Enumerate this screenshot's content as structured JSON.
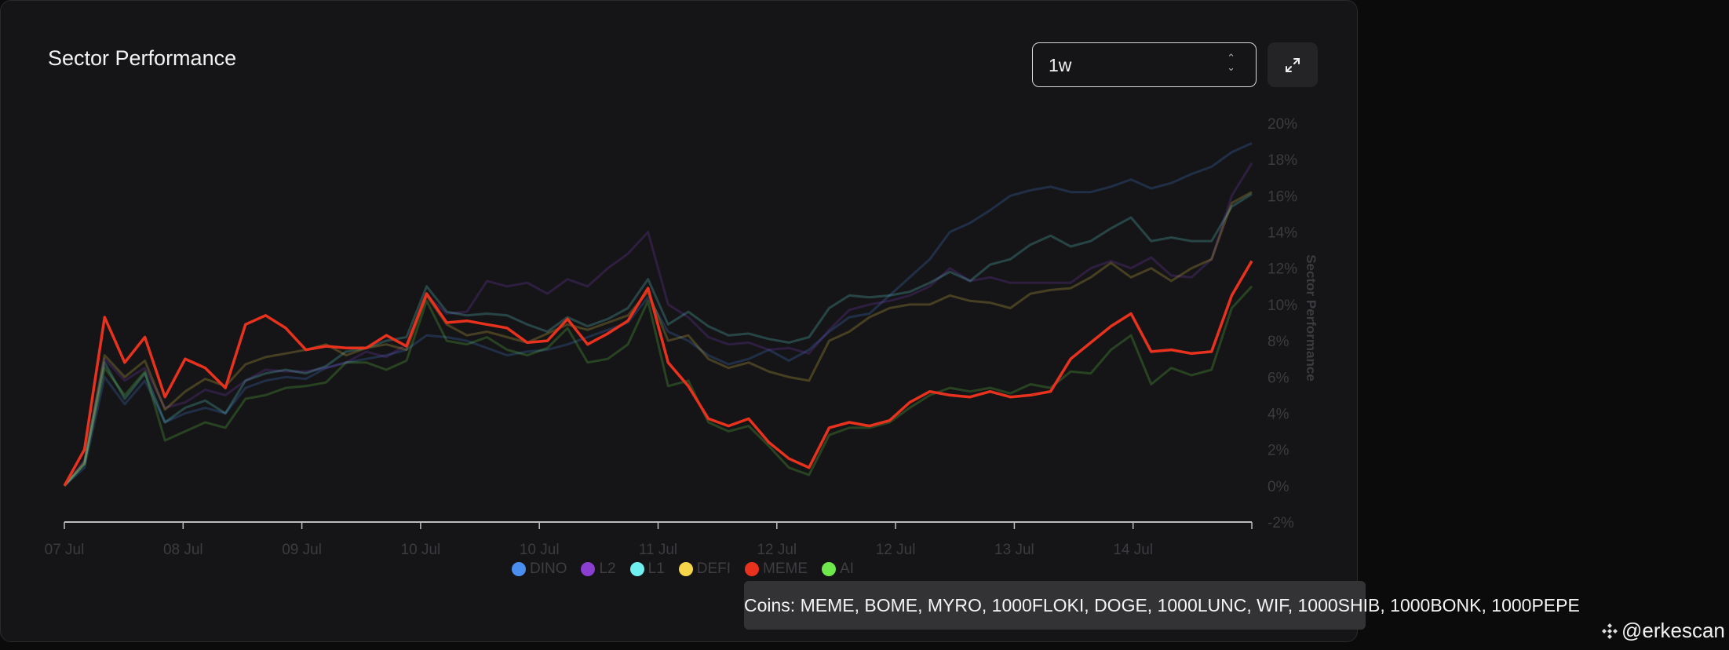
{
  "header": {
    "title": "Sector Performance",
    "timeframe": "1w",
    "expand_icon": "expand-arrows-icon",
    "select_icon": "chevron-up-down-icon"
  },
  "tooltip": {
    "text": "Coins: MEME, BOME, MYRO, 1000FLOKI, DOGE, 1000LUNC, WIF, 1000SHIB, 1000BONK, 1000PEPE"
  },
  "watermark": {
    "text": "@erkescan",
    "icon": "binance-logo-icon"
  },
  "chart_data": {
    "type": "line",
    "title": "",
    "xlabel": "",
    "ylabel": "Sector Performance",
    "x_tick_labels": [
      "07 Jul",
      "08 Jul",
      "09 Jul",
      "10 Jul",
      "10 Jul",
      "11 Jul",
      "12 Jul",
      "12 Jul",
      "13 Jul",
      "14 Jul"
    ],
    "y_tick_labels": [
      "-2%",
      "0%",
      "2%",
      "4%",
      "6%",
      "8%",
      "10%",
      "12%",
      "14%",
      "16%",
      "18%",
      "20%"
    ],
    "ylim": [
      -2,
      20
    ],
    "y_unit": "%",
    "grid": false,
    "legend": "bottom",
    "highlighted_series": "MEME",
    "series": [
      {
        "name": "DINO",
        "color": "#4a8ef0",
        "values": [
          0,
          1.0,
          6.0,
          4.5,
          5.8,
          3.5,
          4.0,
          4.3,
          4.0,
          5.4,
          5.8,
          6.0,
          5.9,
          6.5,
          6.8,
          7.0,
          7.2,
          7.5,
          8.3,
          8.2,
          8.0,
          7.6,
          7.2,
          7.4,
          7.5,
          7.8,
          8.2,
          8.6,
          9.0,
          10.4,
          8.5,
          8.0,
          7.2,
          6.7,
          7.0,
          7.5,
          6.9,
          7.5,
          8.5,
          9.3,
          9.5,
          10.5,
          11.5,
          12.5,
          14.0,
          14.5,
          15.2,
          16.0,
          16.3,
          16.5,
          16.2,
          16.2,
          16.5,
          16.9,
          16.4,
          16.7,
          17.2,
          17.6,
          18.4,
          18.9
        ]
      },
      {
        "name": "L2",
        "color": "#8a3fd1",
        "values": [
          0,
          1.4,
          7.0,
          5.8,
          6.5,
          4.3,
          4.6,
          5.3,
          5.0,
          5.8,
          6.4,
          6.3,
          6.3,
          6.5,
          6.8,
          7.4,
          7.1,
          7.8,
          10.5,
          9.5,
          9.6,
          11.3,
          11.0,
          11.2,
          10.6,
          11.4,
          11.0,
          12.0,
          12.8,
          14.0,
          10.0,
          9.3,
          8.2,
          7.8,
          7.9,
          7.5,
          7.6,
          7.3,
          8.6,
          9.7,
          10.0,
          10.2,
          10.5,
          11.0,
          12.0,
          11.3,
          11.5,
          11.2,
          11.2,
          11.2,
          11.2,
          12.0,
          12.4,
          12.0,
          12.6,
          11.6,
          11.5,
          12.5,
          16.0,
          17.8
        ]
      },
      {
        "name": "L1",
        "color": "#6ff0f0",
        "values": [
          0,
          1.2,
          6.8,
          4.8,
          6.2,
          3.5,
          4.3,
          4.7,
          4.0,
          5.8,
          6.2,
          6.4,
          6.2,
          6.6,
          7.4,
          7.6,
          8.0,
          8.2,
          11.0,
          9.6,
          9.4,
          9.5,
          9.4,
          8.9,
          8.5,
          9.3,
          8.8,
          9.2,
          9.8,
          11.4,
          8.9,
          9.6,
          8.8,
          8.3,
          8.4,
          8.1,
          7.9,
          8.2,
          9.8,
          10.5,
          10.4,
          10.5,
          10.7,
          11.2,
          11.8,
          11.3,
          12.2,
          12.5,
          13.3,
          13.8,
          13.2,
          13.5,
          14.2,
          14.8,
          13.5,
          13.7,
          13.5,
          13.5,
          15.4,
          16.1
        ]
      },
      {
        "name": "DEFI",
        "color": "#f5d54a",
        "values": [
          0,
          1.3,
          7.2,
          6.0,
          6.9,
          4.2,
          5.2,
          5.9,
          5.5,
          6.7,
          7.1,
          7.3,
          7.5,
          7.8,
          7.2,
          7.6,
          7.8,
          7.5,
          10.5,
          8.9,
          8.3,
          8.5,
          8.2,
          7.9,
          8.4,
          8.9,
          8.6,
          9.0,
          9.4,
          10.7,
          8.0,
          8.3,
          7.0,
          6.5,
          6.8,
          6.3,
          6.0,
          5.8,
          8.0,
          8.5,
          9.3,
          9.8,
          10.0,
          10.0,
          10.5,
          10.2,
          10.1,
          9.8,
          10.6,
          10.8,
          10.9,
          11.5,
          12.3,
          11.5,
          12.0,
          11.3,
          12.0,
          12.5,
          15.6,
          16.2
        ]
      },
      {
        "name": "MEME",
        "color": "#e8321e",
        "values": [
          0,
          2.0,
          9.3,
          6.8,
          8.2,
          4.9,
          7.0,
          6.5,
          5.4,
          8.9,
          9.4,
          8.7,
          7.5,
          7.7,
          7.6,
          7.6,
          8.3,
          7.7,
          10.6,
          9.0,
          9.1,
          8.9,
          8.7,
          7.9,
          8.0,
          9.2,
          7.8,
          8.4,
          9.1,
          10.9,
          6.8,
          5.5,
          3.7,
          3.3,
          3.7,
          2.4,
          1.5,
          1.0,
          3.2,
          3.5,
          3.3,
          3.6,
          4.6,
          5.2,
          5.0,
          4.9,
          5.2,
          4.9,
          5.0,
          5.2,
          7.0,
          7.9,
          8.8,
          9.5,
          7.4,
          7.5,
          7.3,
          7.4,
          10.5,
          12.4
        ]
      },
      {
        "name": "AI",
        "color": "#6ee84a",
        "values": [
          0,
          1.2,
          6.5,
          5.0,
          6.3,
          2.5,
          3.0,
          3.5,
          3.2,
          4.8,
          5.0,
          5.4,
          5.5,
          5.7,
          6.8,
          6.8,
          6.4,
          6.9,
          10.2,
          8.0,
          7.8,
          8.2,
          7.5,
          7.2,
          7.6,
          8.7,
          6.8,
          7.0,
          7.8,
          10.2,
          5.5,
          5.8,
          3.5,
          3.0,
          3.3,
          2.2,
          1.0,
          0.6,
          2.8,
          3.2,
          3.2,
          3.5,
          4.3,
          5.0,
          5.4,
          5.2,
          5.4,
          5.1,
          5.6,
          5.4,
          6.3,
          6.2,
          7.5,
          8.3,
          5.6,
          6.5,
          6.1,
          6.4,
          9.8,
          11.0
        ]
      }
    ]
  }
}
